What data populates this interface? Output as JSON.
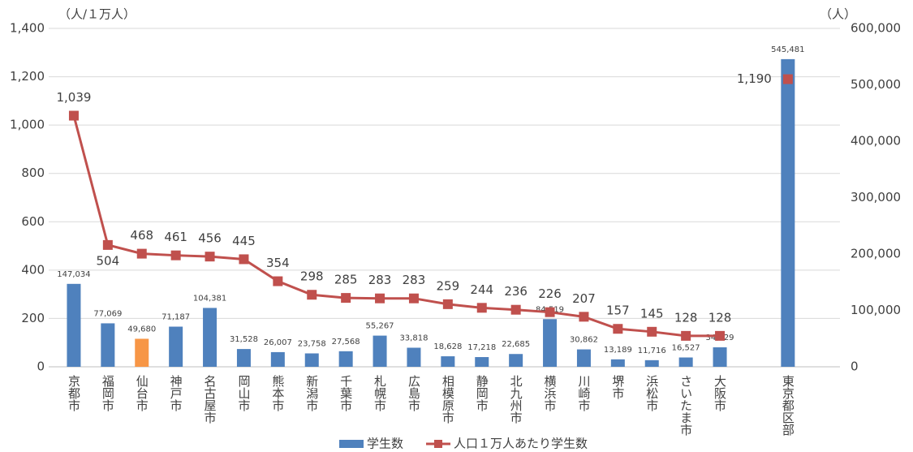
{
  "chart_data": {
    "type": "combo",
    "y_axis_label": "（人/１万人）",
    "y2_axis_label": "（人）",
    "categories": [
      "京都市",
      "福岡市",
      "仙台市",
      "神戸市",
      "名古屋市",
      "岡山市",
      "熊本市",
      "新潟市",
      "千葉市",
      "札幌市",
      "広島市",
      "相模原市",
      "静岡市",
      "北九州市",
      "横浜市",
      "川崎市",
      "堺市",
      "浜松市",
      "さいたま市",
      "大阪市",
      null,
      "東京都区部"
    ],
    "ylim": [
      0,
      1400
    ],
    "yticks": [
      0,
      200,
      400,
      600,
      800,
      {
        "value": 1000,
        "label": "1,000"
      },
      {
        "value": 1200,
        "label": "1,200"
      },
      {
        "value": 1400,
        "label": "1,400"
      }
    ],
    "y2lim": [
      0,
      600000
    ],
    "y2ticks": [
      0,
      {
        "value": 100000,
        "label": "100,000"
      },
      {
        "value": 200000,
        "label": "200,000"
      },
      {
        "value": 300000,
        "label": "300,000"
      },
      {
        "value": 400000,
        "label": "400,000"
      },
      {
        "value": 500000,
        "label": "500,000"
      },
      {
        "value": 600000,
        "label": "600,000"
      }
    ],
    "grid": true,
    "legend": "bottom",
    "series": [
      {
        "name": "学生数",
        "type": "bar",
        "axis": "y2",
        "color": "#4f81bd",
        "colors": [
          "#4f81bd",
          "#4f81bd",
          "#f79646",
          "#4f81bd",
          "#4f81bd",
          "#4f81bd",
          "#4f81bd",
          "#4f81bd",
          "#4f81bd",
          "#4f81bd",
          "#4f81bd",
          "#4f81bd",
          "#4f81bd",
          "#4f81bd",
          "#4f81bd",
          "#4f81bd",
          "#4f81bd",
          "#4f81bd",
          "#4f81bd",
          "#4f81bd",
          null,
          "#4f81bd"
        ],
        "values": [
          147034,
          77069,
          49680,
          71187,
          104381,
          31528,
          26007,
          23758,
          27568,
          55267,
          33818,
          18628,
          17218,
          22685,
          84519,
          30862,
          13189,
          11716,
          16527,
          34529,
          null,
          545481
        ],
        "value_labels": [
          "147,034",
          "77,069",
          "49,680",
          "71,187",
          "104,381",
          "31,528",
          "26,007",
          "23,758",
          "27,568",
          "55,267",
          "33,818",
          "18,628",
          "17,218",
          "22,685",
          "84,519",
          "30,862",
          "13,189",
          "11,716",
          "16,527",
          "34,529",
          null,
          "545,481"
        ]
      },
      {
        "name": "人口１万人あたり学生数",
        "type": "line",
        "axis": "y",
        "color": "#c0504d",
        "values": [
          1039,
          504,
          468,
          461,
          456,
          445,
          354,
          298,
          285,
          283,
          283,
          259,
          244,
          236,
          226,
          207,
          157,
          145,
          128,
          128,
          null,
          1190
        ],
        "value_labels": [
          "1,039",
          "504",
          "468",
          "461",
          "456",
          "445",
          "354",
          "298",
          "285",
          "283",
          "283",
          "259",
          "244",
          "236",
          "226",
          "207",
          "157",
          "145",
          "128",
          "128",
          null,
          "1,190"
        ]
      }
    ]
  }
}
